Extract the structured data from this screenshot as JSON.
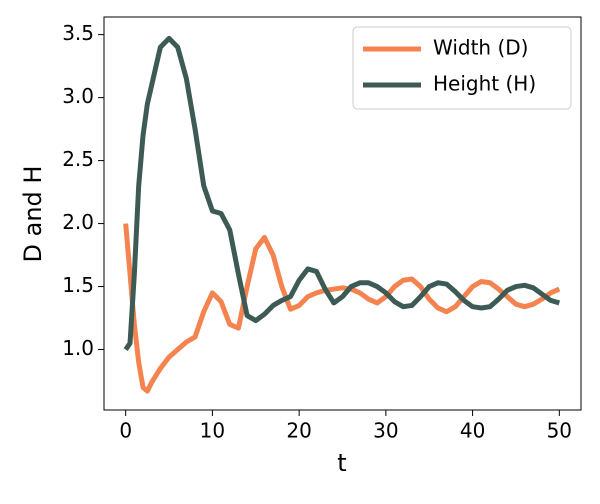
{
  "chart_data": {
    "type": "line",
    "xlabel": "t",
    "ylabel": "D and H",
    "x": [
      0,
      0.5,
      1,
      1.5,
      2,
      2.5,
      3,
      4,
      5,
      6,
      7,
      8,
      9,
      10,
      11,
      12,
      13,
      14,
      15,
      16,
      17,
      18,
      19,
      20,
      21,
      22,
      23,
      24,
      25,
      26,
      27,
      28,
      29,
      30,
      31,
      32,
      33,
      34,
      35,
      36,
      37,
      38,
      39,
      40,
      41,
      42,
      43,
      44,
      45,
      46,
      47,
      48,
      49,
      50
    ],
    "series": [
      {
        "name": "Width (D)",
        "color": "#f4834f",
        "values": [
          2.0,
          1.6,
          1.2,
          0.9,
          0.7,
          0.67,
          0.74,
          0.85,
          0.94,
          1.0,
          1.06,
          1.1,
          1.3,
          1.45,
          1.38,
          1.2,
          1.17,
          1.5,
          1.8,
          1.89,
          1.75,
          1.5,
          1.32,
          1.35,
          1.42,
          1.45,
          1.47,
          1.48,
          1.49,
          1.48,
          1.45,
          1.4,
          1.37,
          1.42,
          1.5,
          1.55,
          1.56,
          1.5,
          1.4,
          1.33,
          1.3,
          1.34,
          1.42,
          1.5,
          1.54,
          1.53,
          1.48,
          1.42,
          1.36,
          1.34,
          1.36,
          1.4,
          1.45,
          1.48
        ]
      },
      {
        "name": "Height (H)",
        "color": "#3d5a55",
        "values": [
          1.0,
          1.05,
          1.6,
          2.3,
          2.7,
          2.95,
          3.1,
          3.4,
          3.47,
          3.4,
          3.15,
          2.75,
          2.3,
          2.1,
          2.08,
          1.95,
          1.6,
          1.27,
          1.23,
          1.28,
          1.35,
          1.39,
          1.42,
          1.55,
          1.64,
          1.62,
          1.48,
          1.37,
          1.42,
          1.5,
          1.53,
          1.53,
          1.5,
          1.45,
          1.38,
          1.34,
          1.35,
          1.42,
          1.5,
          1.53,
          1.52,
          1.46,
          1.39,
          1.34,
          1.33,
          1.34,
          1.4,
          1.47,
          1.5,
          1.51,
          1.49,
          1.44,
          1.39,
          1.37
        ]
      }
    ],
    "xlim": [
      -2.5,
      52.5
    ],
    "ylim": [
      0.52,
      3.64
    ],
    "xticks": [
      0,
      10,
      20,
      30,
      40,
      50
    ],
    "yticks": [
      {
        "value": 1,
        "label": "1.0"
      },
      1.5,
      {
        "value": 2,
        "label": "2.0"
      },
      2.5,
      {
        "value": 3,
        "label": "3.0"
      },
      3.5
    ],
    "grid": false,
    "legend": "upper right"
  }
}
